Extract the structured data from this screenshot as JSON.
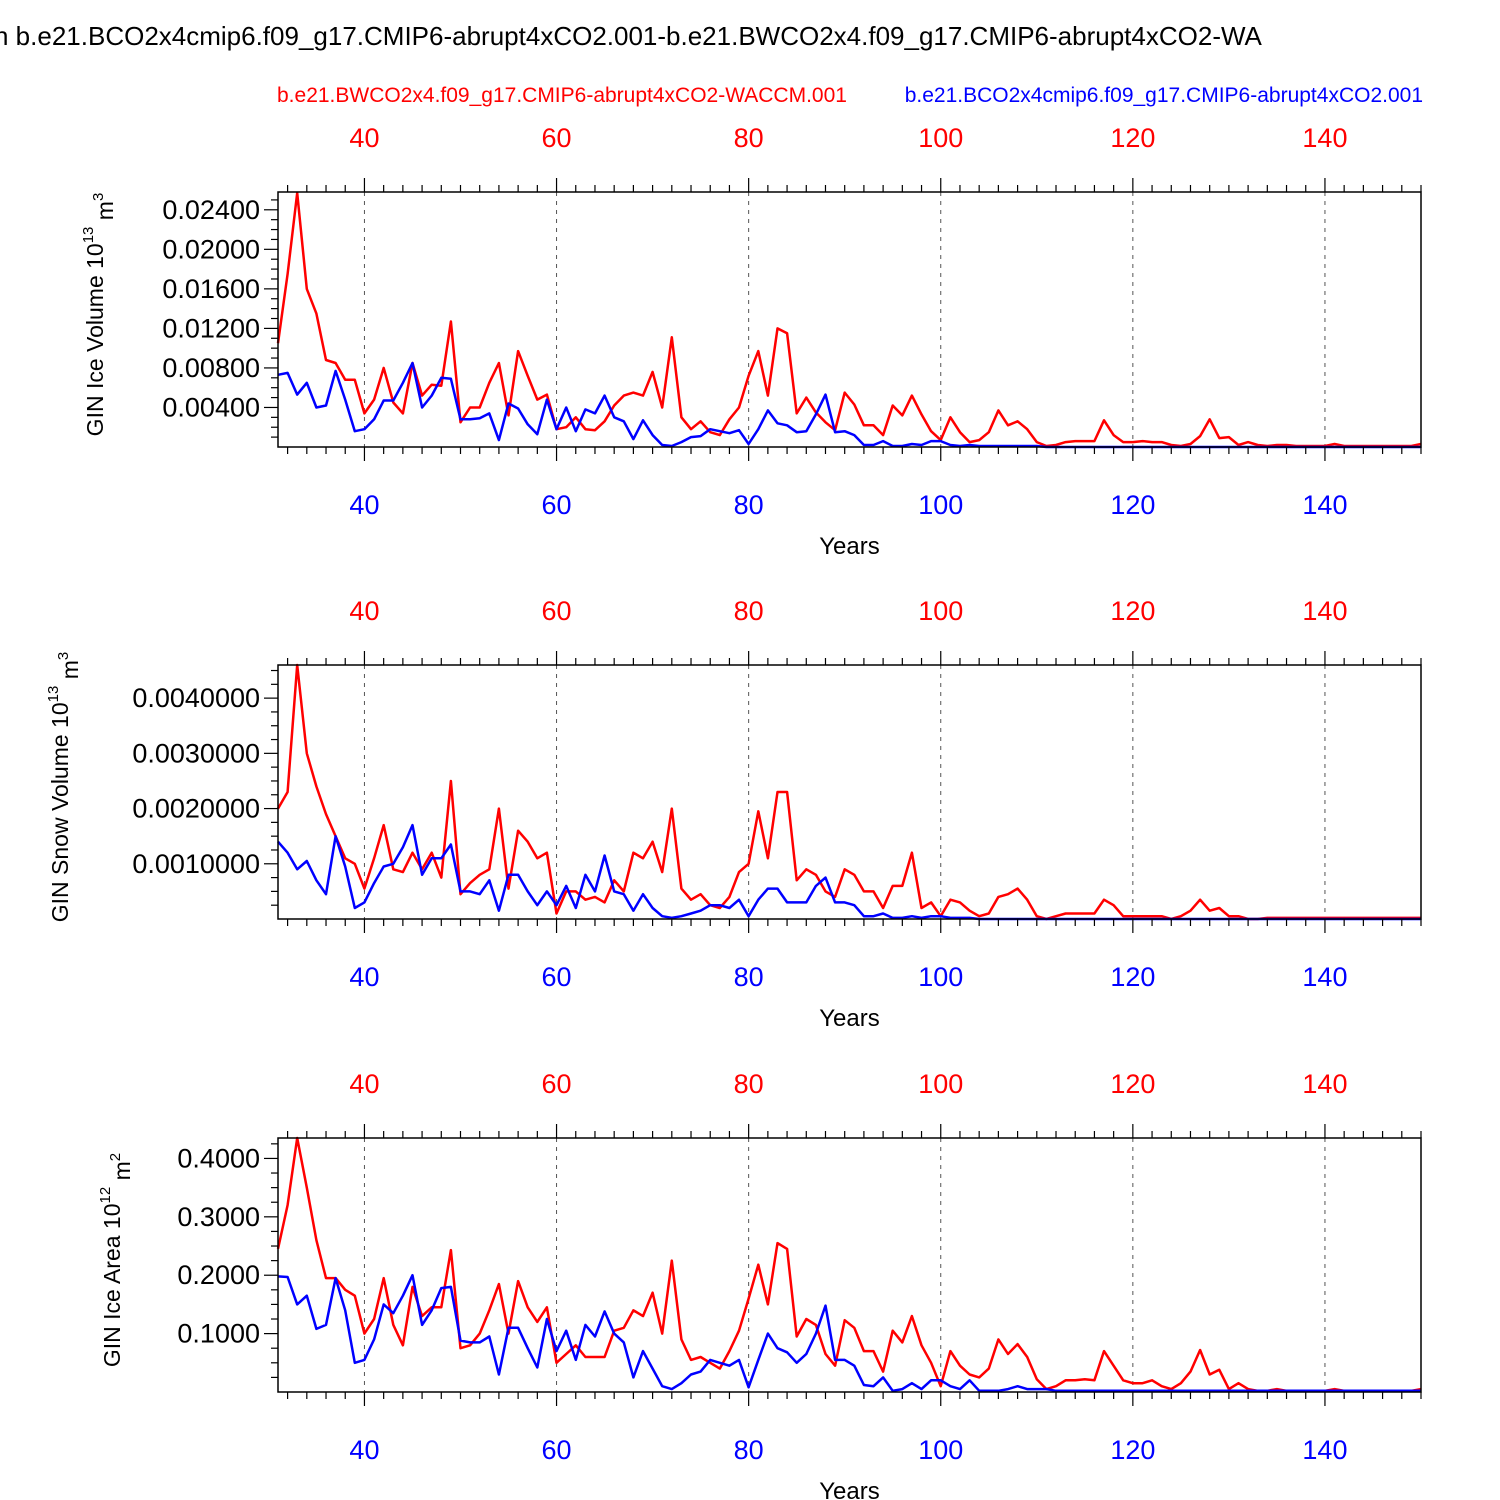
{
  "title": "n b.e21.BCO2x4cmip6.f09_g17.CMIP6-abrupt4xCO2.001-b.e21.BWCO2x4.f09_g17.CMIP6-abrupt4xCO2-WA",
  "colors": {
    "red": "#ff0000",
    "blue": "#0000ff",
    "axis": "#000000",
    "grid": "#555555"
  },
  "chart_data": [
    {
      "type": "line",
      "ylabel": "GIN Ice Volume 10",
      "ylabel_exp": "13",
      "ylabel_unit": " m",
      "ylabel_unit_exp": "3",
      "xlabel": "Years",
      "top_legend_red": "b.e21.BWCO2x4.f09_g17.CMIP6-abrupt4xCO2-WACCM.001",
      "top_legend_blue": "b.e21.BCO2x4cmip6.f09_g17.CMIP6-abrupt4xCO2.001",
      "xlim": [
        31,
        150
      ],
      "ylim": [
        0,
        0.0258
      ],
      "x_ticks": [
        "40",
        "60",
        "80",
        "100",
        "120",
        "140"
      ],
      "y_ticks": [
        "0.00400",
        "0.00800",
        "0.01200",
        "0.01600",
        "0.02000",
        "0.02400"
      ],
      "series": [
        {
          "name": "b.e21.BWCO2x4.f09_g17.CMIP6-abrupt4xCO2-WACCM.001",
          "color": "red",
          "x_start": 31,
          "values": [
            0.0105,
            0.0175,
            0.0257,
            0.016,
            0.0135,
            0.0088,
            0.0085,
            0.0068,
            0.0068,
            0.0034,
            0.0048,
            0.008,
            0.0045,
            0.0034,
            0.0085,
            0.0052,
            0.0063,
            0.0062,
            0.0127,
            0.0025,
            0.004,
            0.004,
            0.0065,
            0.0085,
            0.0032,
            0.0097,
            0.0072,
            0.0048,
            0.0053,
            0.0018,
            0.002,
            0.003,
            0.0018,
            0.0017,
            0.0026,
            0.0042,
            0.0052,
            0.0055,
            0.0052,
            0.0076,
            0.004,
            0.0111,
            0.003,
            0.0018,
            0.0026,
            0.0015,
            0.0012,
            0.0028,
            0.004,
            0.0072,
            0.0097,
            0.0052,
            0.012,
            0.0115,
            0.0034,
            0.005,
            0.0035,
            0.0025,
            0.0017,
            0.0055,
            0.0043,
            0.0022,
            0.0022,
            0.0012,
            0.0042,
            0.0032,
            0.0052,
            0.0033,
            0.0016,
            0.0007,
            0.003,
            0.0015,
            0.0005,
            0.0007,
            0.0015,
            0.0037,
            0.0022,
            0.0026,
            0.0018,
            0.0005,
            0.0001,
            0.0002,
            0.0005,
            0.0006,
            0.0006,
            0.0006,
            0.0027,
            0.0012,
            0.0005,
            0.0005,
            0.0006,
            0.0005,
            0.0005,
            0.0002,
            0.0001,
            0.0003,
            0.0011,
            0.0028,
            0.0009,
            0.001,
            0.0002,
            0.0005,
            0.0002,
            0.0001,
            0.0002,
            0.0002,
            0.0001,
            0.0001,
            0.0001,
            0.0001,
            0.0003,
            0.0001,
            0.0001,
            0.0001,
            0.0001,
            0.0001,
            0.0001,
            0.0001,
            0.0001,
            0.0003
          ]
        },
        {
          "name": "b.e21.BCO2x4cmip6.f09_g17.CMIP6-abrupt4xCO2.001",
          "color": "blue",
          "x_start": 31,
          "values": [
            0.0073,
            0.0075,
            0.0053,
            0.0065,
            0.004,
            0.0042,
            0.0077,
            0.0048,
            0.0016,
            0.0018,
            0.0028,
            0.0047,
            0.0047,
            0.0065,
            0.0085,
            0.004,
            0.0052,
            0.007,
            0.0069,
            0.0028,
            0.0028,
            0.0029,
            0.0034,
            0.0007,
            0.0044,
            0.0039,
            0.0023,
            0.0013,
            0.0048,
            0.0018,
            0.004,
            0.0016,
            0.0038,
            0.0034,
            0.0052,
            0.003,
            0.0026,
            0.0008,
            0.0027,
            0.0012,
            0.0002,
            0.0001,
            0.0005,
            0.001,
            0.0011,
            0.0018,
            0.0016,
            0.0014,
            0.0017,
            0.0003,
            0.0018,
            0.0037,
            0.0024,
            0.0022,
            0.0015,
            0.0016,
            0.0033,
            0.0053,
            0.0015,
            0.0016,
            0.0012,
            0.0002,
            0.0002,
            0.0006,
            0.0001,
            0.0001,
            0.0003,
            0.0002,
            0.0006,
            0.0006,
            0.0002,
            0.0001,
            0.0002,
            0.0001,
            0.0001,
            0.0001,
            0.0001,
            0.0001,
            0.0001,
            0.0001,
            0,
            0,
            0,
            0,
            0,
            0,
            0,
            0,
            0,
            0,
            0,
            0,
            0,
            0,
            0,
            0,
            0,
            0,
            0,
            0,
            0,
            0,
            0,
            0,
            0,
            0,
            0,
            0,
            0,
            0,
            0,
            0,
            0,
            0,
            0,
            0,
            0,
            0,
            0,
            0
          ]
        }
      ]
    },
    {
      "type": "line",
      "ylabel": "GIN Snow Volume 10",
      "ylabel_exp": "13",
      "ylabel_unit": " m",
      "ylabel_unit_exp": "3",
      "xlabel": "Years",
      "xlim": [
        31,
        150
      ],
      "ylim": [
        0,
        0.0046
      ],
      "x_ticks": [
        "40",
        "60",
        "80",
        "100",
        "120",
        "140"
      ],
      "y_ticks": [
        "0.0010000",
        "0.0020000",
        "0.0030000",
        "0.0040000"
      ],
      "series": [
        {
          "name": "b.e21.BWCO2x4.f09_g17.CMIP6-abrupt4xCO2-WACCM.001",
          "color": "red",
          "x_start": 31,
          "values": [
            0.002,
            0.0023,
            0.0046,
            0.003,
            0.0024,
            0.0019,
            0.0015,
            0.0011,
            0.001,
            0.00055,
            0.0011,
            0.0017,
            0.0009,
            0.00085,
            0.0012,
            0.0009,
            0.0012,
            0.00075,
            0.0025,
            0.00045,
            0.00065,
            0.0008,
            0.0009,
            0.002,
            0.00055,
            0.0016,
            0.0014,
            0.0011,
            0.0012,
            0.0001,
            0.0005,
            0.0005,
            0.00035,
            0.0004,
            0.0003,
            0.0007,
            0.0005,
            0.0012,
            0.0011,
            0.0014,
            0.00085,
            0.002,
            0.00055,
            0.00035,
            0.00045,
            0.00025,
            0.0002,
            0.0004,
            0.00085,
            0.001,
            0.00195,
            0.0011,
            0.0023,
            0.0023,
            0.0007,
            0.0009,
            0.0008,
            0.0005,
            0.0004,
            0.0009,
            0.0008,
            0.0005,
            0.0005,
            0.0002,
            0.0006,
            0.0006,
            0.0012,
            0.0002,
            0.0003,
            5e-05,
            0.00035,
            0.0003,
            0.00015,
            5e-05,
            0.0001,
            0.0004,
            0.00045,
            0.00055,
            0.00035,
            5e-05,
            0,
            5e-05,
            0.0001,
            0.0001,
            0.0001,
            0.0001,
            0.00035,
            0.00025,
            5e-05,
            5e-05,
            5e-05,
            5e-05,
            5e-05,
            0,
            5e-05,
            0.00015,
            0.00035,
            0.00015,
            0.0002,
            5e-05,
            5e-05,
            0,
            0,
            2e-05,
            2e-05,
            2e-05,
            2e-05,
            2e-05,
            2e-05,
            2e-05,
            2e-05,
            2e-05,
            2e-05,
            2e-05,
            2e-05,
            2e-05,
            2e-05,
            2e-05,
            2e-05,
            2e-05
          ]
        },
        {
          "name": "b.e21.BCO2x4cmip6.f09_g17.CMIP6-abrupt4xCO2.001",
          "color": "blue",
          "x_start": 31,
          "values": [
            0.0014,
            0.0012,
            0.0009,
            0.00105,
            0.0007,
            0.00045,
            0.0015,
            0.00095,
            0.0002,
            0.0003,
            0.00065,
            0.00095,
            0.001,
            0.0013,
            0.0017,
            0.0008,
            0.0011,
            0.0011,
            0.00135,
            0.0005,
            0.0005,
            0.00045,
            0.0007,
            0.00015,
            0.0008,
            0.0008,
            0.0005,
            0.00025,
            0.0005,
            0.00025,
            0.0006,
            0.0002,
            0.0008,
            0.0005,
            0.00115,
            0.0005,
            0.00045,
            0.00015,
            0.00045,
            0.0002,
            5e-05,
            2e-05,
            5e-05,
            0.0001,
            0.00015,
            0.00025,
            0.00025,
            0.0002,
            0.00035,
            5e-05,
            0.00035,
            0.00055,
            0.00055,
            0.0003,
            0.0003,
            0.0003,
            0.0006,
            0.00075,
            0.0003,
            0.0003,
            0.00025,
            5e-05,
            5e-05,
            0.0001,
            2e-05,
            2e-05,
            5e-05,
            2e-05,
            5e-05,
            5e-05,
            2e-05,
            2e-05,
            2e-05,
            0,
            0,
            0,
            0,
            0,
            0,
            0,
            0,
            0,
            0,
            0,
            0,
            0,
            0,
            0,
            0,
            0,
            0,
            0,
            0,
            0,
            0,
            0,
            0,
            0,
            0,
            0,
            0,
            0,
            0,
            0,
            0,
            0,
            0,
            0,
            0,
            0,
            0,
            0,
            0,
            0,
            0,
            0,
            0,
            0,
            0,
            0
          ]
        }
      ]
    },
    {
      "type": "line",
      "ylabel": "GIN Ice Area 10",
      "ylabel_exp": "12",
      "ylabel_unit": " m",
      "ylabel_unit_exp": "2",
      "xlabel": "Years",
      "xlim": [
        31,
        150
      ],
      "ylim": [
        0,
        0.435
      ],
      "x_ticks": [
        "40",
        "60",
        "80",
        "100",
        "120",
        "140"
      ],
      "y_ticks": [
        "0.1000",
        "0.2000",
        "0.3000",
        "0.4000"
      ],
      "series": [
        {
          "name": "b.e21.BWCO2x4.f09_g17.CMIP6-abrupt4xCO2-WACCM.001",
          "color": "red",
          "x_start": 31,
          "values": [
            0.245,
            0.32,
            0.435,
            0.35,
            0.26,
            0.195,
            0.195,
            0.175,
            0.165,
            0.1,
            0.125,
            0.195,
            0.115,
            0.08,
            0.18,
            0.13,
            0.145,
            0.145,
            0.243,
            0.075,
            0.08,
            0.1,
            0.14,
            0.185,
            0.1,
            0.19,
            0.145,
            0.12,
            0.145,
            0.05,
            0.065,
            0.08,
            0.06,
            0.06,
            0.06,
            0.105,
            0.11,
            0.14,
            0.13,
            0.17,
            0.1,
            0.225,
            0.09,
            0.055,
            0.06,
            0.05,
            0.04,
            0.07,
            0.105,
            0.16,
            0.218,
            0.15,
            0.255,
            0.245,
            0.095,
            0.125,
            0.115,
            0.065,
            0.045,
            0.123,
            0.11,
            0.07,
            0.07,
            0.035,
            0.105,
            0.085,
            0.13,
            0.08,
            0.05,
            0.01,
            0.07,
            0.045,
            0.03,
            0.025,
            0.04,
            0.09,
            0.065,
            0.082,
            0.06,
            0.022,
            0.005,
            0.01,
            0.02,
            0.02,
            0.022,
            0.02,
            0.07,
            0.045,
            0.02,
            0.015,
            0.015,
            0.02,
            0.01,
            0.005,
            0.015,
            0.035,
            0.072,
            0.03,
            0.038,
            0.005,
            0.015,
            0.005,
            0.002,
            0.002,
            0.005,
            0.002,
            0.002,
            0.002,
            0.002,
            0.002,
            0.005,
            0.002,
            0.002,
            0.002,
            0.002,
            0.002,
            0.002,
            0.002,
            0.002,
            0.005
          ]
        },
        {
          "name": "b.e21.BCO2x4cmip6.f09_g17.CMIP6-abrupt4xCO2.001",
          "color": "blue",
          "x_start": 31,
          "values": [
            0.198,
            0.197,
            0.15,
            0.165,
            0.108,
            0.115,
            0.195,
            0.14,
            0.05,
            0.055,
            0.09,
            0.15,
            0.135,
            0.165,
            0.2,
            0.115,
            0.14,
            0.178,
            0.18,
            0.088,
            0.085,
            0.085,
            0.095,
            0.03,
            0.11,
            0.11,
            0.075,
            0.042,
            0.125,
            0.07,
            0.105,
            0.055,
            0.115,
            0.095,
            0.138,
            0.1,
            0.085,
            0.025,
            0.07,
            0.04,
            0.01,
            0.005,
            0.015,
            0.03,
            0.035,
            0.055,
            0.05,
            0.045,
            0.055,
            0.008,
            0.055,
            0.1,
            0.075,
            0.068,
            0.05,
            0.065,
            0.1,
            0.148,
            0.055,
            0.055,
            0.045,
            0.012,
            0.01,
            0.025,
            0.002,
            0.005,
            0.015,
            0.005,
            0.02,
            0.02,
            0.01,
            0.005,
            0.02,
            0.002,
            0.002,
            0.002,
            0.005,
            0.01,
            0.005,
            0.005,
            0.005,
            0.002,
            0.002,
            0.002,
            0.002,
            0.002,
            0.002,
            0.002,
            0.002,
            0.002,
            0.002,
            0.002,
            0.002,
            0.002,
            0.002,
            0.002,
            0.002,
            0.002,
            0.002,
            0.002,
            0.002,
            0.002,
            0.002,
            0.002,
            0.002,
            0.002,
            0.002,
            0.002,
            0.002,
            0.002,
            0.002,
            0.002,
            0.002,
            0.002,
            0.002,
            0.002,
            0.002,
            0.002,
            0.002,
            0.002
          ]
        }
      ]
    }
  ]
}
